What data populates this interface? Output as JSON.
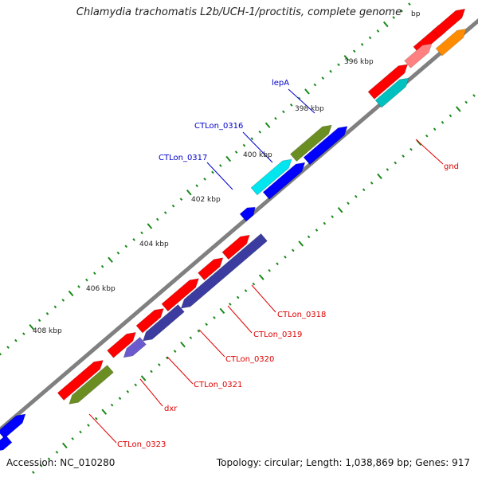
{
  "title": "Chlamydia trachomatis L2b/UCH-1/proctitis, complete genome",
  "footer": {
    "accession": "Accession: NC_010280",
    "summary": "Topology: circular; Length: 1,038,869 bp; Genes: 917"
  },
  "colors": {
    "backbone": "#808080",
    "tick": "#1a8a1a",
    "red": "#ff0000",
    "blue": "#0000ff",
    "olive": "#6b8e23",
    "cyan": "#00e5ee",
    "teal": "#00c0c0",
    "navy": "#3c3ca0",
    "purple": "#6a5acd",
    "pink": "#ff8080",
    "orange": "#ff8c00",
    "label_blue": "#0000cc",
    "label_red": "#e00000"
  },
  "scale_labels": [
    "396 kbp",
    "398 kbp",
    "400 kbp",
    "402 kbp",
    "404 kbp",
    "406 kbp",
    "408 kbp",
    "bp"
  ],
  "gene_labels": {
    "lepA": "lepA",
    "ctlon_0316": "CTLon_0316",
    "ctlon_0317": "CTLon_0317",
    "gnd": "gnd",
    "ctlon_0318": "CTLon_0318",
    "ctlon_0319": "CTLon_0319",
    "ctlon_0320": "CTLon_0320",
    "ctlon_0321": "CTLon_0321",
    "dxr": "dxr",
    "ctlon_0323": "CTLon_0323"
  }
}
